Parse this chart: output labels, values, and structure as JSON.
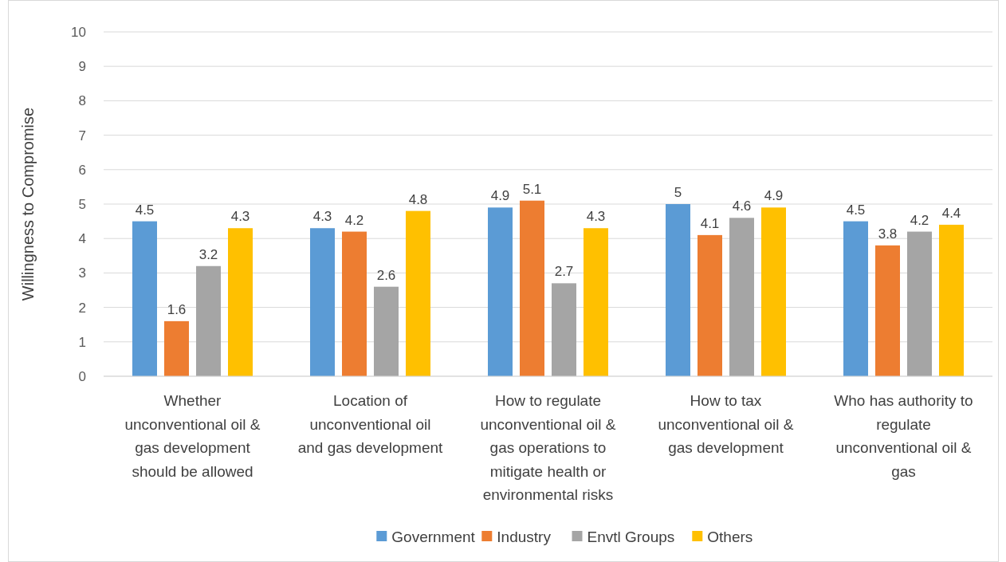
{
  "chart_data": {
    "type": "bar",
    "ylabel": "Willingness to Compromise",
    "categories": [
      "Whether unconventional oil & gas development should be allowed",
      "Location of unconventional oil and gas development",
      "How to regulate unconventional oil & gas operations to mitigate health or environmental risks",
      "How to tax unconventional oil & gas development",
      "Who has authority to regulate unconventional oil & gas"
    ],
    "series": [
      {
        "name": "Government",
        "color": "#5b9bd5",
        "values": [
          4.5,
          4.3,
          4.9,
          5,
          4.5
        ]
      },
      {
        "name": "Industry",
        "color": "#ed7d31",
        "values": [
          1.6,
          4.2,
          5.1,
          4.1,
          3.8
        ]
      },
      {
        "name": "Envtl Groups",
        "color": "#a5a5a5",
        "values": [
          3.2,
          2.6,
          2.7,
          4.6,
          4.2
        ]
      },
      {
        "name": "Others",
        "color": "#ffc000",
        "values": [
          4.3,
          4.8,
          4.3,
          4.9,
          4.4
        ]
      }
    ],
    "ylim": [
      0,
      10
    ],
    "yticks": [
      0,
      1,
      2,
      3,
      4,
      5,
      6,
      7,
      8,
      9,
      10
    ],
    "grid": "y",
    "data_labels": true,
    "legend": "bottom"
  }
}
